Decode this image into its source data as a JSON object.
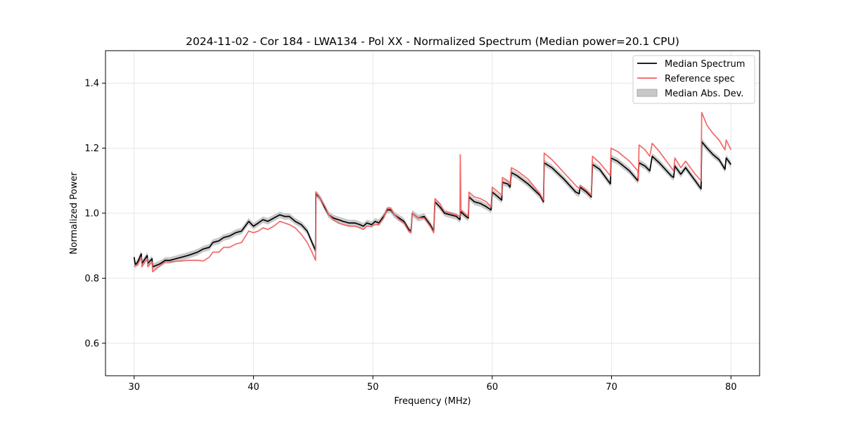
{
  "chart_data": {
    "type": "line",
    "title": "2024-11-02 - Cor 184 - LWA134 - Pol XX - Normalized Spectrum (Median power=20.1 CPU)",
    "xlabel": "Frequency (MHz)",
    "ylabel": "Normalized Power",
    "xlim": [
      27.6,
      82.4
    ],
    "ylim": [
      0.5,
      1.5
    ],
    "xticks": [
      30,
      40,
      50,
      60,
      70,
      80
    ],
    "yticks": [
      0.6,
      0.8,
      1.0,
      1.2,
      1.4
    ],
    "xtick_labels": [
      "30",
      "40",
      "50",
      "60",
      "70",
      "80"
    ],
    "ytick_labels": [
      "0.6",
      "0.8",
      "1.0",
      "1.2",
      "1.4"
    ],
    "grid": true,
    "legend_position": "top-right",
    "colors": {
      "median": "#000000",
      "reference": "#f26060",
      "mad_band": "#bfbfbf"
    },
    "series": [
      {
        "name": "Median Spectrum",
        "points": [
          [
            30.0,
            0.865
          ],
          [
            30.1,
            0.84
          ],
          [
            30.3,
            0.85
          ],
          [
            30.6,
            0.875
          ],
          [
            30.65,
            0.845
          ],
          [
            31.1,
            0.87
          ],
          [
            31.15,
            0.845
          ],
          [
            31.5,
            0.86
          ],
          [
            31.55,
            0.835
          ],
          [
            31.9,
            0.84
          ],
          [
            32.2,
            0.845
          ],
          [
            32.6,
            0.855
          ],
          [
            33.0,
            0.855
          ],
          [
            33.5,
            0.86
          ],
          [
            34.0,
            0.865
          ],
          [
            34.5,
            0.87
          ],
          [
            34.9,
            0.875
          ],
          [
            35.3,
            0.88
          ],
          [
            35.8,
            0.89
          ],
          [
            36.3,
            0.895
          ],
          [
            36.6,
            0.91
          ],
          [
            37.1,
            0.915
          ],
          [
            37.5,
            0.925
          ],
          [
            38.0,
            0.93
          ],
          [
            38.5,
            0.94
          ],
          [
            39.0,
            0.945
          ],
          [
            39.6,
            0.975
          ],
          [
            40.0,
            0.96
          ],
          [
            40.4,
            0.97
          ],
          [
            40.8,
            0.98
          ],
          [
            41.2,
            0.975
          ],
          [
            41.7,
            0.985
          ],
          [
            42.2,
            0.995
          ],
          [
            42.6,
            0.99
          ],
          [
            43.0,
            0.99
          ],
          [
            43.5,
            0.975
          ],
          [
            44.0,
            0.965
          ],
          [
            44.5,
            0.945
          ],
          [
            44.9,
            0.91
          ],
          [
            45.2,
            0.885
          ],
          [
            45.22,
            1.06
          ],
          [
            45.6,
            1.045
          ],
          [
            46.0,
            1.015
          ],
          [
            46.3,
            0.995
          ],
          [
            46.7,
            0.985
          ],
          [
            47.1,
            0.98
          ],
          [
            47.5,
            0.975
          ],
          [
            48.0,
            0.97
          ],
          [
            48.5,
            0.97
          ],
          [
            48.9,
            0.965
          ],
          [
            49.2,
            0.96
          ],
          [
            49.5,
            0.97
          ],
          [
            49.9,
            0.965
          ],
          [
            50.2,
            0.975
          ],
          [
            50.5,
            0.97
          ],
          [
            50.9,
            0.99
          ],
          [
            51.2,
            1.01
          ],
          [
            51.5,
            1.01
          ],
          [
            51.8,
            0.995
          ],
          [
            52.2,
            0.985
          ],
          [
            52.6,
            0.975
          ],
          [
            53.0,
            0.95
          ],
          [
            53.2,
            0.945
          ],
          [
            53.3,
            1.0
          ],
          [
            53.8,
            0.985
          ],
          [
            54.3,
            0.99
          ],
          [
            54.8,
            0.965
          ],
          [
            55.1,
            0.945
          ],
          [
            55.2,
            1.035
          ],
          [
            55.6,
            1.02
          ],
          [
            56.0,
            1.0
          ],
          [
            56.5,
            0.995
          ],
          [
            57.0,
            0.99
          ],
          [
            57.3,
            0.98
          ],
          [
            57.35,
            1.005
          ],
          [
            57.8,
            0.99
          ],
          [
            58.0,
            0.985
          ],
          [
            58.05,
            1.05
          ],
          [
            58.5,
            1.035
          ],
          [
            59.0,
            1.03
          ],
          [
            59.5,
            1.02
          ],
          [
            59.9,
            1.01
          ],
          [
            60.0,
            1.065
          ],
          [
            60.5,
            1.05
          ],
          [
            60.8,
            1.04
          ],
          [
            60.85,
            1.095
          ],
          [
            61.3,
            1.09
          ],
          [
            61.5,
            1.08
          ],
          [
            61.6,
            1.125
          ],
          [
            62.1,
            1.115
          ],
          [
            63.0,
            1.09
          ],
          [
            64.0,
            1.055
          ],
          [
            64.3,
            1.035
          ],
          [
            64.35,
            1.155
          ],
          [
            65.0,
            1.14
          ],
          [
            66.0,
            1.105
          ],
          [
            67.0,
            1.065
          ],
          [
            67.3,
            1.06
          ],
          [
            67.35,
            1.08
          ],
          [
            67.9,
            1.065
          ],
          [
            68.3,
            1.05
          ],
          [
            68.4,
            1.15
          ],
          [
            69.0,
            1.135
          ],
          [
            69.9,
            1.09
          ],
          [
            69.95,
            1.17
          ],
          [
            70.5,
            1.16
          ],
          [
            71.5,
            1.13
          ],
          [
            72.2,
            1.1
          ],
          [
            72.3,
            1.155
          ],
          [
            72.8,
            1.145
          ],
          [
            73.2,
            1.13
          ],
          [
            73.4,
            1.175
          ],
          [
            74.0,
            1.155
          ],
          [
            75.0,
            1.115
          ],
          [
            75.2,
            1.11
          ],
          [
            75.3,
            1.145
          ],
          [
            75.8,
            1.12
          ],
          [
            76.2,
            1.14
          ],
          [
            76.5,
            1.125
          ],
          [
            77.0,
            1.1
          ],
          [
            77.5,
            1.075
          ],
          [
            77.55,
            1.22
          ],
          [
            78.0,
            1.2
          ],
          [
            78.5,
            1.18
          ],
          [
            79.0,
            1.165
          ],
          [
            79.5,
            1.135
          ],
          [
            79.6,
            1.17
          ],
          [
            80.0,
            1.15
          ]
        ]
      },
      {
        "name": "Reference spec",
        "points": [
          [
            30.0,
            0.835
          ],
          [
            30.1,
            0.84
          ],
          [
            30.3,
            0.84
          ],
          [
            30.6,
            0.865
          ],
          [
            30.65,
            0.835
          ],
          [
            31.1,
            0.86
          ],
          [
            31.15,
            0.835
          ],
          [
            31.5,
            0.85
          ],
          [
            31.55,
            0.82
          ],
          [
            31.9,
            0.83
          ],
          [
            32.2,
            0.84
          ],
          [
            32.6,
            0.85
          ],
          [
            33.0,
            0.85
          ],
          [
            33.5,
            0.852
          ],
          [
            34.0,
            0.853
          ],
          [
            34.5,
            0.855
          ],
          [
            34.9,
            0.855
          ],
          [
            35.3,
            0.855
          ],
          [
            35.8,
            0.853
          ],
          [
            36.3,
            0.865
          ],
          [
            36.6,
            0.88
          ],
          [
            37.1,
            0.88
          ],
          [
            37.5,
            0.895
          ],
          [
            38.0,
            0.895
          ],
          [
            38.5,
            0.905
          ],
          [
            39.0,
            0.91
          ],
          [
            39.6,
            0.945
          ],
          [
            40.0,
            0.94
          ],
          [
            40.4,
            0.945
          ],
          [
            40.8,
            0.955
          ],
          [
            41.2,
            0.95
          ],
          [
            41.7,
            0.96
          ],
          [
            42.2,
            0.975
          ],
          [
            42.6,
            0.97
          ],
          [
            43.0,
            0.965
          ],
          [
            43.5,
            0.955
          ],
          [
            44.0,
            0.935
          ],
          [
            44.5,
            0.91
          ],
          [
            44.9,
            0.88
          ],
          [
            45.2,
            0.855
          ],
          [
            45.22,
            1.065
          ],
          [
            45.6,
            1.045
          ],
          [
            46.0,
            1.02
          ],
          [
            46.3,
            0.995
          ],
          [
            46.7,
            0.98
          ],
          [
            47.1,
            0.97
          ],
          [
            47.5,
            0.965
          ],
          [
            48.0,
            0.96
          ],
          [
            48.5,
            0.96
          ],
          [
            48.9,
            0.955
          ],
          [
            49.2,
            0.95
          ],
          [
            49.5,
            0.96
          ],
          [
            49.9,
            0.96
          ],
          [
            50.2,
            0.965
          ],
          [
            50.5,
            0.965
          ],
          [
            50.9,
            0.985
          ],
          [
            51.2,
            1.015
          ],
          [
            51.5,
            1.015
          ],
          [
            51.8,
            0.995
          ],
          [
            52.2,
            0.98
          ],
          [
            52.6,
            0.97
          ],
          [
            53.0,
            0.945
          ],
          [
            53.2,
            0.94
          ],
          [
            53.3,
            1.0
          ],
          [
            53.8,
            0.985
          ],
          [
            54.3,
            0.985
          ],
          [
            54.8,
            0.96
          ],
          [
            55.1,
            0.94
          ],
          [
            55.2,
            1.045
          ],
          [
            55.6,
            1.03
          ],
          [
            56.0,
            1.005
          ],
          [
            56.5,
            1.0
          ],
          [
            57.0,
            0.995
          ],
          [
            57.3,
            0.99
          ],
          [
            57.32,
            1.18
          ],
          [
            57.38,
            1.01
          ],
          [
            57.8,
            0.995
          ],
          [
            58.0,
            0.99
          ],
          [
            58.05,
            1.065
          ],
          [
            58.5,
            1.05
          ],
          [
            59.0,
            1.045
          ],
          [
            59.5,
            1.035
          ],
          [
            59.9,
            1.02
          ],
          [
            60.0,
            1.08
          ],
          [
            60.5,
            1.065
          ],
          [
            60.8,
            1.055
          ],
          [
            60.85,
            1.11
          ],
          [
            61.3,
            1.1
          ],
          [
            61.5,
            1.09
          ],
          [
            61.6,
            1.14
          ],
          [
            62.1,
            1.13
          ],
          [
            63.0,
            1.105
          ],
          [
            64.0,
            1.06
          ],
          [
            64.3,
            1.04
          ],
          [
            64.35,
            1.185
          ],
          [
            65.0,
            1.165
          ],
          [
            66.0,
            1.125
          ],
          [
            67.0,
            1.085
          ],
          [
            67.3,
            1.075
          ],
          [
            67.35,
            1.085
          ],
          [
            67.9,
            1.07
          ],
          [
            68.3,
            1.055
          ],
          [
            68.4,
            1.175
          ],
          [
            69.0,
            1.155
          ],
          [
            69.9,
            1.115
          ],
          [
            69.95,
            1.2
          ],
          [
            70.5,
            1.19
          ],
          [
            71.5,
            1.16
          ],
          [
            72.2,
            1.13
          ],
          [
            72.25,
            1.1
          ],
          [
            72.3,
            1.21
          ],
          [
            72.8,
            1.195
          ],
          [
            73.2,
            1.175
          ],
          [
            73.4,
            1.215
          ],
          [
            74.0,
            1.19
          ],
          [
            75.0,
            1.14
          ],
          [
            75.2,
            1.13
          ],
          [
            75.3,
            1.17
          ],
          [
            75.8,
            1.14
          ],
          [
            76.2,
            1.16
          ],
          [
            76.5,
            1.145
          ],
          [
            77.0,
            1.12
          ],
          [
            77.5,
            1.1
          ],
          [
            77.55,
            1.31
          ],
          [
            78.0,
            1.27
          ],
          [
            78.5,
            1.245
          ],
          [
            79.0,
            1.225
          ],
          [
            79.5,
            1.195
          ],
          [
            79.6,
            1.225
          ],
          [
            80.0,
            1.195
          ]
        ]
      }
    ],
    "band": {
      "name": "Median Abs. Dev.",
      "base_series": "Median Spectrum",
      "half_width": 0.01
    }
  }
}
